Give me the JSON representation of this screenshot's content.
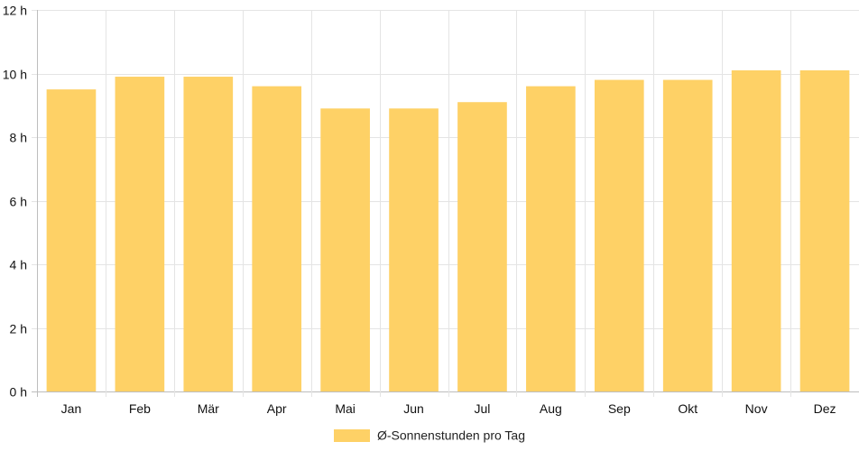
{
  "chart_data": {
    "type": "bar",
    "categories": [
      "Jan",
      "Feb",
      "Mär",
      "Apr",
      "Mai",
      "Jun",
      "Jul",
      "Aug",
      "Sep",
      "Okt",
      "Nov",
      "Dez"
    ],
    "series": [
      {
        "name": "Ø-Sonnenstunden pro Tag",
        "values": [
          9.5,
          9.9,
          9.9,
          9.6,
          8.9,
          8.9,
          9.1,
          9.6,
          9.8,
          9.8,
          10.1,
          10.1
        ],
        "color": "#fed166"
      }
    ],
    "ylim": [
      0,
      12
    ],
    "yticks": [
      0,
      2,
      4,
      6,
      8,
      10,
      12
    ],
    "ytick_suffix": " h",
    "grid": true,
    "legend_position": "bottom"
  }
}
